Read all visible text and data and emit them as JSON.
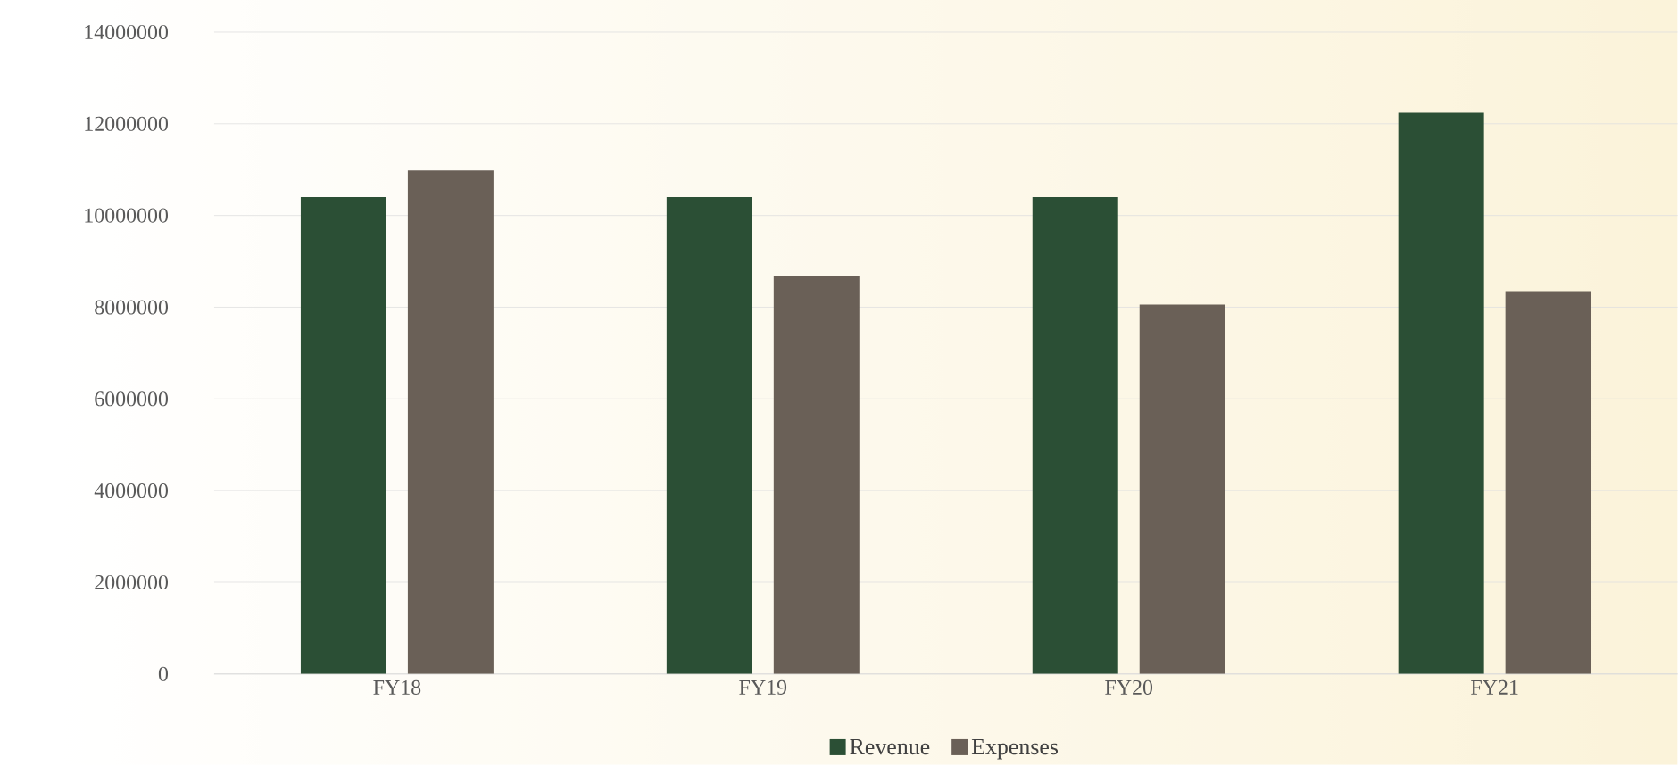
{
  "chart_data": {
    "type": "bar",
    "categories": [
      "FY18",
      "FY19",
      "FY20",
      "FY21"
    ],
    "series": [
      {
        "name": "Revenue",
        "color": "#2b4f35",
        "values": [
          10400000,
          10400000,
          10400000,
          12240000
        ]
      },
      {
        "name": "Expenses",
        "color": "#6a6057",
        "values": [
          10980000,
          8690000,
          8060000,
          8350000
        ]
      }
    ],
    "ylim": [
      0,
      14000000
    ],
    "yticks": [
      0,
      2000000,
      4000000,
      6000000,
      8000000,
      10000000,
      12000000,
      14000000
    ],
    "grid": "y",
    "legend": "bottom"
  }
}
